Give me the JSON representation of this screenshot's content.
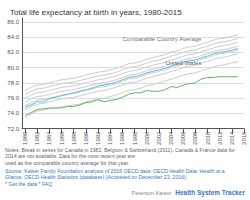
{
  "chart_data": {
    "type": "line",
    "title": "Total life expectancy at birth in years, 1980-2015",
    "x": [
      1980,
      1981,
      1982,
      1983,
      1984,
      1985,
      1986,
      1987,
      1988,
      1989,
      1990,
      1991,
      1992,
      1993,
      1994,
      1995,
      1996,
      1997,
      1998,
      1999,
      2000,
      2001,
      2002,
      2003,
      2004,
      2005,
      2006,
      2007,
      2008,
      2009,
      2010,
      2011,
      2012,
      2013,
      2014,
      2015
    ],
    "series": [
      {
        "color": "#cccccc",
        "values": [
          73.5,
          73.9,
          74.3,
          74.4,
          74.6,
          74.7,
          74.9,
          75.0,
          75.1,
          75.2,
          75.5,
          75.7,
          75.9,
          76.0,
          76.2,
          76.4,
          76.7,
          77.0,
          77.1,
          77.3,
          77.6,
          77.8,
          78.0,
          78.2,
          78.5,
          78.7,
          79.0,
          79.2,
          79.3,
          79.6,
          79.8,
          80.1,
          80.3,
          80.4,
          80.6,
          80.8
        ]
      },
      {
        "color": "#cccccc",
        "values": [
          74.5,
          74.9,
          75.2,
          75.3,
          75.5,
          75.7,
          75.9,
          76.0,
          76.1,
          76.3,
          76.5,
          76.7,
          76.9,
          77.0,
          77.2,
          77.4,
          77.7,
          78.0,
          78.1,
          78.3,
          78.6,
          78.8,
          79.0,
          79.2,
          79.5,
          79.7,
          80.0,
          80.2,
          80.3,
          80.6,
          80.8,
          81.1,
          81.3,
          81.4,
          81.6,
          81.8
        ]
      },
      {
        "color": "#cccccc",
        "values": [
          75.0,
          75.4,
          75.7,
          75.8,
          76.0,
          76.2,
          76.4,
          76.5,
          76.6,
          76.8,
          77.0,
          77.2,
          77.4,
          77.5,
          77.7,
          77.9,
          78.2,
          78.5,
          78.6,
          78.8,
          79.1,
          79.3,
          79.5,
          79.7,
          80.0,
          80.2,
          80.5,
          80.7,
          80.8,
          81.1,
          81.3,
          81.6,
          81.8,
          81.9,
          82.1,
          82.3
        ]
      },
      {
        "color": "#cccccc",
        "values": [
          75.5,
          75.9,
          76.2,
          76.3,
          76.5,
          76.7,
          76.9,
          77.0,
          77.1,
          77.3,
          77.5,
          77.7,
          77.9,
          78.0,
          78.2,
          78.4,
          78.7,
          79.0,
          79.1,
          79.3,
          79.6,
          79.8,
          80.0,
          80.2,
          80.5,
          80.7,
          81.0,
          81.2,
          81.3,
          81.6,
          81.8,
          82.1,
          82.3,
          82.4,
          82.6,
          82.8
        ]
      },
      {
        "color": "#cccccc",
        "values": [
          76.0,
          76.4,
          76.7,
          76.8,
          77.0,
          77.2,
          77.4,
          77.5,
          77.6,
          77.8,
          78.0,
          78.2,
          78.4,
          78.5,
          78.7,
          78.9,
          79.2,
          79.5,
          79.6,
          79.8,
          80.1,
          80.3,
          80.5,
          80.7,
          81.0,
          81.2,
          81.5,
          81.7,
          81.8,
          82.1,
          82.3,
          82.6,
          82.8,
          82.9,
          83.1,
          83.3
        ]
      },
      {
        "color": "#cccccc",
        "values": [
          76.5,
          76.9,
          77.2,
          77.3,
          77.5,
          77.7,
          77.9,
          78.0,
          78.1,
          78.3,
          78.5,
          78.7,
          78.9,
          79.0,
          79.2,
          79.4,
          79.7,
          80.0,
          80.1,
          80.3,
          80.6,
          80.8,
          81.0,
          81.2,
          81.5,
          81.7,
          82.0,
          82.2,
          82.3,
          82.6,
          82.8,
          83.1,
          83.3,
          83.4,
          83.6,
          83.8
        ]
      },
      {
        "color": "#cccccc",
        "values": [
          77.0,
          77.4,
          77.7,
          77.8,
          78.0,
          78.2,
          78.4,
          78.5,
          78.6,
          78.8,
          79.0,
          79.2,
          79.4,
          79.5,
          79.7,
          79.9,
          80.2,
          80.5,
          80.6,
          80.8,
          81.1,
          81.3,
          81.5,
          81.7,
          82.0,
          82.2,
          82.5,
          82.7,
          82.8,
          83.1,
          83.3,
          83.6,
          83.8,
          83.9,
          84.1,
          84.3
        ]
      },
      {
        "color": "#5bc0de",
        "values": [
          74.8,
          75.1,
          75.5,
          75.5,
          75.9,
          76.1,
          76.3,
          76.5,
          76.7,
          76.9,
          77.1,
          77.3,
          77.6,
          77.7,
          77.9,
          78.1,
          78.4,
          78.7,
          78.8,
          79.0,
          79.3,
          79.5,
          79.7,
          79.9,
          80.2,
          80.4,
          80.7,
          80.9,
          81.0,
          81.3,
          81.5,
          81.8,
          82.0,
          82.1,
          82.3,
          82.5
        ]
      },
      {
        "color": "#5cb85c",
        "values": [
          73.7,
          74.1,
          74.5,
          74.6,
          74.7,
          74.7,
          74.7,
          74.9,
          74.9,
          75.1,
          75.4,
          75.5,
          75.8,
          75.5,
          75.7,
          75.8,
          76.1,
          76.5,
          76.7,
          76.7,
          77.0,
          76.9,
          76.9,
          77.1,
          77.5,
          77.4,
          77.7,
          77.9,
          78.0,
          78.5,
          78.7,
          78.7,
          78.8,
          78.8,
          78.8,
          78.8
        ]
      }
    ],
    "annotations": [
      {
        "text": "Comparable Country Average",
        "x": 2009,
        "y": 83.4
      },
      {
        "text": "United States",
        "x": 2009,
        "y": 80.2
      }
    ],
    "notes": [
      "Notes: Break in series for Canada in 1982, Belgium & Switzerland (2011). Canada & France data for 2014 are not available. Data for the most recent year are\nused as the comparable country average for that year.",
      "Source: Kaiser Family Foundation analysis of 2016 OECD data: OECD Health Data: Health at a\nGlance, OECD Health Statistics (database) (Accessed on December 23, 2016).\n* Get the data * FAQ"
    ],
    "footer": [
      "Peterson-Kaiser",
      "Health System Tracker"
    ],
    "xlim": [
      1979.5,
      2016
    ],
    "xticks": [
      1980,
      1982,
      1984,
      1986,
      1988,
      1990,
      1992,
      1994,
      1996,
      1998,
      2000,
      2002,
      2004,
      2006,
      2008,
      2010,
      2012,
      2014,
      2016
    ],
    "ylim": [
      72.0,
      86.5
    ],
    "yticks": [
      {
        "value": 72,
        "label": "72.0"
      },
      {
        "value": 74,
        "label": "74.0"
      },
      {
        "value": 76,
        "label": "76.0"
      },
      {
        "value": 78,
        "label": "78.0"
      },
      {
        "value": 80,
        "label": "80.0"
      },
      {
        "value": 82,
        "label": "82.0"
      },
      {
        "value": 84,
        "label": "84.0"
      },
      {
        "value": 86,
        "label": "86.0"
      }
    ],
    "grid": true
  }
}
